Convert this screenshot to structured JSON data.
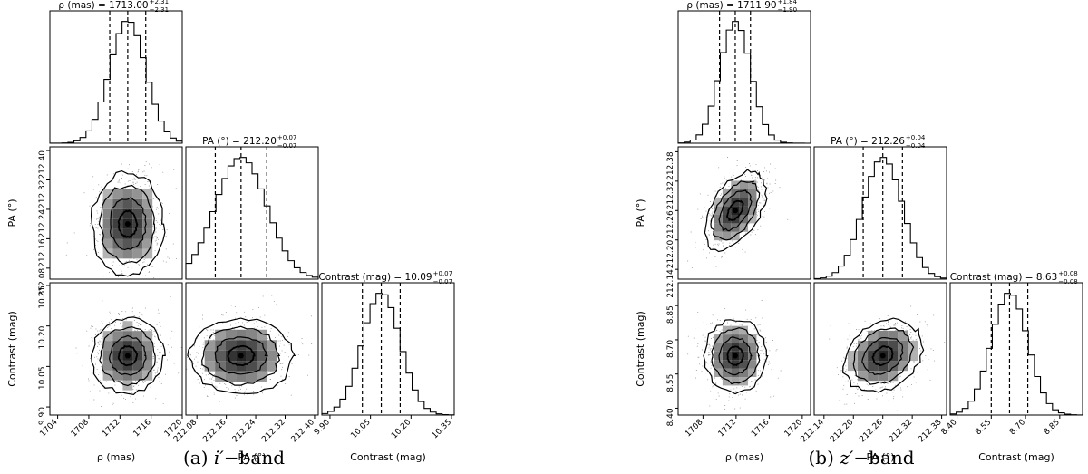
{
  "chart_data": [
    {
      "type": "scatter",
      "kind": "corner-plot",
      "caption": {
        "label": "(a)",
        "band": "i′",
        "suffix": "−band"
      },
      "parameters": [
        {
          "key": "rho",
          "xlabel": "ρ (mas)",
          "ylabel": "",
          "title": "ρ (mas) = 1713.00",
          "median": 1713.0,
          "err_plus": 2.31,
          "err_minus": 2.31,
          "err_plus_label": "+2.31",
          "err_minus_label": "−2.31",
          "range": [
            1703,
            1720
          ],
          "ticks": [
            1704,
            1708,
            1712,
            1716,
            1720
          ],
          "tick_labels": [
            "1704",
            "1708",
            "1712",
            "1716",
            "1720"
          ]
        },
        {
          "key": "pa",
          "xlabel": "PA (°)",
          "ylabel": "PA (°)",
          "title": "PA (°) = 212.20",
          "median": 212.2,
          "err_plus": 0.07,
          "err_minus": 0.07,
          "err_plus_label": "+0.07",
          "err_minus_label": "−0.07",
          "range": [
            212.05,
            212.41
          ],
          "ticks": [
            212.08,
            212.16,
            212.24,
            212.32,
            212.4
          ],
          "tick_labels": [
            "212.08",
            "212.16",
            "212.24",
            "212.32",
            "212.40"
          ]
        },
        {
          "key": "con",
          "xlabel": "Contrast (mag)",
          "ylabel": "Contrast (mag)",
          "title": "Contrast (mag) = 10.09",
          "median": 10.09,
          "err_plus": 0.07,
          "err_minus": 0.07,
          "err_plus_label": "+0.07",
          "err_minus_label": "−0.07",
          "range": [
            9.87,
            10.36
          ],
          "ticks": [
            9.9,
            10.05,
            10.2,
            10.35
          ],
          "tick_labels": [
            "9.90",
            "10.05",
            "10.20",
            "10.35"
          ]
        }
      ],
      "correlation": {
        "rho_pa": 0.0,
        "rho_con": 0.0,
        "pa_con": 0.0
      }
    },
    {
      "type": "scatter",
      "kind": "corner-plot",
      "caption": {
        "label": "(b)",
        "band": "z′",
        "suffix": "−band"
      },
      "parameters": [
        {
          "key": "rho",
          "xlabel": "ρ (mas)",
          "ylabel": "",
          "title": "ρ (mas) = 1711.90",
          "median": 1711.9,
          "err_plus": 1.84,
          "err_minus": 1.9,
          "err_plus_label": "+1.84",
          "err_minus_label": "−1.90",
          "range": [
            1705,
            1721
          ],
          "ticks": [
            1708,
            1712,
            1716,
            1720
          ],
          "tick_labels": [
            "1708",
            "1712",
            "1716",
            "1720"
          ]
        },
        {
          "key": "pa",
          "xlabel": "PA (°)",
          "ylabel": "PA (°)",
          "title": "PA (°) = 212.26",
          "median": 212.26,
          "err_plus": 0.04,
          "err_minus": 0.04,
          "err_plus_label": "+0.04",
          "err_minus_label": "−0.04",
          "range": [
            212.12,
            212.39
          ],
          "ticks": [
            212.14,
            212.2,
            212.26,
            212.32,
            212.38
          ],
          "tick_labels": [
            "212.14",
            "212.20",
            "212.26",
            "212.32",
            "212.38"
          ]
        },
        {
          "key": "con",
          "xlabel": "Contrast (mag)",
          "ylabel": "Contrast (mag)",
          "title": "Contrast (mag) = 8.63",
          "median": 8.63,
          "err_plus": 0.08,
          "err_minus": 0.08,
          "err_plus_label": "+0.08",
          "err_minus_label": "−0.08",
          "range": [
            8.37,
            8.95
          ],
          "ticks": [
            8.4,
            8.55,
            8.7,
            8.85
          ],
          "tick_labels": [
            "8.40",
            "8.55",
            "8.70",
            "8.85"
          ]
        }
      ],
      "correlation": {
        "rho_pa": 0.5,
        "rho_con": 0.0,
        "pa_con": 0.25
      }
    }
  ]
}
